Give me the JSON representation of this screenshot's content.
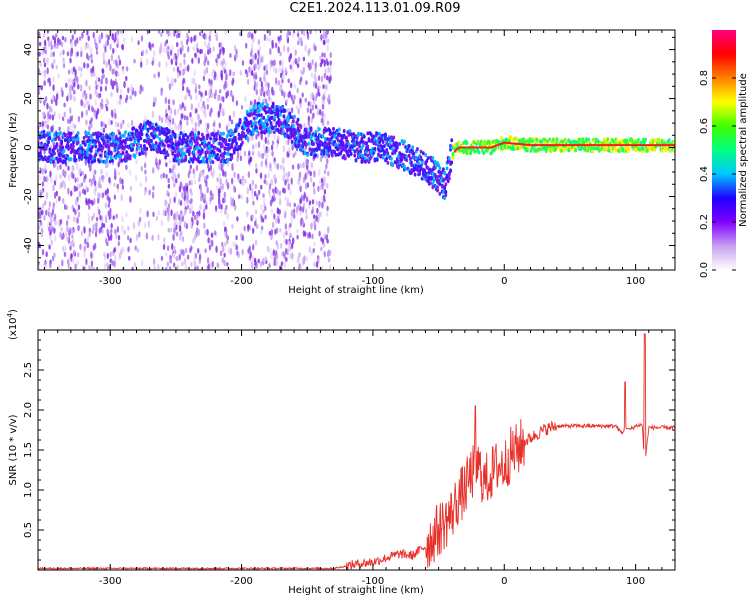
{
  "title": "C2E1.2024.113.01.09.R09",
  "chart_data": [
    {
      "type": "heatmap",
      "xlabel": "Height of straight line (km)",
      "ylabel": "Frequency (Hz)",
      "xlim": [
        -355,
        130
      ],
      "ylim": [
        -50,
        48
      ],
      "xticks": [
        -300,
        -200,
        -100,
        0,
        100
      ],
      "xtick_labels": [
        "-300",
        "-200",
        "-100",
        "0",
        "100"
      ],
      "yticks": [
        -40,
        -20,
        0,
        20,
        40
      ],
      "ytick_labels": [
        "-40",
        "-20",
        "0",
        "20",
        "40"
      ],
      "colorbar": {
        "label": "Normalized spectral amplitude",
        "range": [
          0.0,
          1.0
        ],
        "ticks": [
          0.0,
          0.2,
          0.4,
          0.6,
          0.8
        ],
        "tick_labels": [
          "0.0",
          "0.2",
          "0.4",
          "0.6",
          "0.8"
        ],
        "colors": [
          "#ffffff",
          "#c8a0f0",
          "#8000ff",
          "#2000ff",
          "#00c8ff",
          "#00ff80",
          "#40ff00",
          "#ffff00",
          "#ff8000",
          "#ff0000",
          "#ff0080"
        ]
      },
      "ridge": {
        "x": [
          -350,
          -320,
          -290,
          -270,
          -250,
          -230,
          -210,
          -190,
          -170,
          -150,
          -130,
          -110,
          -90,
          -70,
          -55,
          -45,
          -40,
          -35,
          -25,
          -10,
          0,
          20,
          50,
          80,
          100,
          130
        ],
        "y": [
          0,
          0,
          0,
          5,
          0,
          0,
          0,
          12,
          12,
          2,
          2,
          0,
          0,
          -5,
          -10,
          -15,
          -3,
          0,
          0,
          0,
          2,
          1,
          1,
          1,
          1,
          1
        ]
      }
    },
    {
      "type": "line",
      "xlabel": "Height of straight line (km)",
      "ylabel": "SNR (10 * v/v)",
      "multiplier": "(x10",
      "multiplier_exp": "4",
      "multiplier_close": ")",
      "xlim": [
        -355,
        130
      ],
      "ylim": [
        0,
        3.0
      ],
      "xticks": [
        -300,
        -200,
        -100,
        0,
        100
      ],
      "xtick_labels": [
        "-300",
        "-200",
        "-100",
        "0",
        "100"
      ],
      "yticks": [
        0.5,
        1.0,
        1.5,
        2.0,
        2.5
      ],
      "ytick_labels": [
        "0.5",
        "1.0",
        "1.5",
        "2.0",
        "2.5"
      ],
      "color": "#e8302a",
      "series": [
        {
          "x": [
            -355,
            -300,
            -250,
            -200,
            -150,
            -130,
            -120,
            -110,
            -100,
            -90,
            -80,
            -70,
            -60,
            -50,
            -45,
            -40,
            -35,
            -30,
            -25,
            -20,
            -15,
            -10,
            -5,
            0,
            5,
            10,
            15,
            20,
            25,
            30,
            35,
            40,
            50,
            60,
            70,
            80,
            85,
            90,
            92,
            95,
            100,
            105,
            107,
            110,
            120,
            130
          ],
          "y": [
            0.02,
            0.02,
            0.02,
            0.02,
            0.02,
            0.02,
            0.05,
            0.08,
            0.1,
            0.15,
            0.2,
            0.18,
            0.3,
            0.5,
            0.6,
            0.7,
            0.9,
            1.0,
            1.2,
            1.3,
            1.1,
            1.2,
            1.3,
            1.3,
            1.45,
            1.5,
            1.6,
            1.65,
            1.7,
            1.75,
            1.78,
            1.8,
            1.8,
            1.8,
            1.8,
            1.8,
            1.8,
            1.7,
            1.8,
            1.75,
            1.8,
            1.82,
            1.3,
            1.78,
            1.78,
            1.78
          ]
        }
      ]
    }
  ]
}
